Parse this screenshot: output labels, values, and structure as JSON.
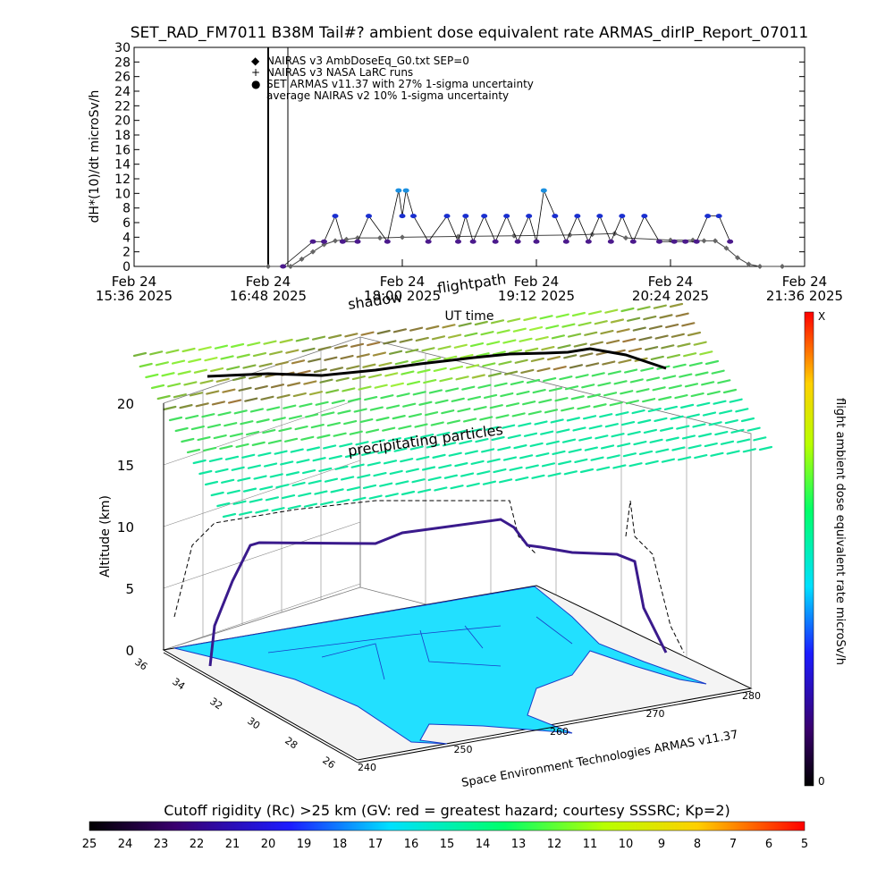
{
  "title": "SET_RAD_FM7011  B38M Tail#? ambient dose equivalent rate ARMAS_dirIP_Report_07011",
  "chart_data": [
    {
      "type": "scatter",
      "ylabel": "dH*(10)/dt microSv/h",
      "xlabel": "UT time",
      "ylim": [
        0,
        30
      ],
      "yticks": [
        "0",
        "2",
        "4",
        "6",
        "8",
        "10",
        "12",
        "14",
        "16",
        "18",
        "20",
        "22",
        "24",
        "26",
        "28",
        "30"
      ],
      "xticks": [
        {
          "date": "Feb 24",
          "time": "15:36 2025"
        },
        {
          "date": "Feb 24",
          "time": "16:48 2025"
        },
        {
          "date": "Feb 24",
          "time": "18:00 2025"
        },
        {
          "date": "Feb 24",
          "time": "19:12 2025"
        },
        {
          "date": "Feb 24",
          "time": "20:24 2025"
        },
        {
          "date": "Feb 24",
          "time": "21:36 2025"
        }
      ],
      "xlim": [
        "15:36",
        "21:36"
      ],
      "legend_position": "top-left",
      "legend": [
        {
          "symbol": "◆",
          "text": "NAIRAS v3 AmbDoseEq_G0.txt SEP=0",
          "color": "#555555"
        },
        {
          "symbol": "+",
          "text": "NAIRAS v3 NASA LaRC runs",
          "color": "#000000"
        },
        {
          "symbol": "●",
          "text": "SET ARMAS v11.37 with 27% 1-sigma uncertainty",
          "color": "#1a2fd0"
        },
        {
          "symbol": "",
          "text": "average NAIRAS v2 10% 1-sigma uncertainty",
          "color": "#000000"
        }
      ],
      "series": [
        {
          "name": "NAIRAS v3 AmbDoseEq_G0.txt SEP=0",
          "x": [
            "16:48",
            "17:00",
            "17:06",
            "17:12",
            "17:18",
            "17:24",
            "17:30",
            "17:36",
            "17:48",
            "18:00",
            "18:30",
            "19:00",
            "19:30",
            "19:42",
            "19:54",
            "20:00",
            "20:24",
            "20:36",
            "20:42",
            "20:48",
            "20:54",
            "21:00",
            "21:06",
            "21:12",
            "21:24"
          ],
          "values": [
            0,
            0,
            1,
            2,
            3,
            3.5,
            3.7,
            3.9,
            3.9,
            4.0,
            4.1,
            4.2,
            4.3,
            4.4,
            4.5,
            3.9,
            3.6,
            3.6,
            3.5,
            3.5,
            2.5,
            1.2,
            0.3,
            0,
            0
          ]
        },
        {
          "name": "SET ARMAS v11.37 with 27% 1-sigma uncertainty",
          "x": [
            "16:56",
            "17:12",
            "17:18",
            "17:24",
            "17:28",
            "17:36",
            "17:42",
            "17:52",
            "17:58",
            "18:00",
            "18:02",
            "18:06",
            "18:14",
            "18:24",
            "18:30",
            "18:34",
            "18:38",
            "18:44",
            "18:50",
            "18:56",
            "19:02",
            "19:08",
            "19:12",
            "19:16",
            "19:22",
            "19:28",
            "19:34",
            "19:40",
            "19:46",
            "19:52",
            "19:58",
            "20:04",
            "20:10",
            "20:18",
            "20:26",
            "20:32",
            "20:38",
            "20:44",
            "20:50",
            "20:56"
          ],
          "values": [
            0,
            3.4,
            3.4,
            6.9,
            3.4,
            3.4,
            6.9,
            3.4,
            10.4,
            6.9,
            10.4,
            6.9,
            3.4,
            6.9,
            3.4,
            6.9,
            3.4,
            6.9,
            3.4,
            6.9,
            3.4,
            6.9,
            3.4,
            10.4,
            6.9,
            3.4,
            6.9,
            3.4,
            6.9,
            3.4,
            6.9,
            3.4,
            6.9,
            3.4,
            3.4,
            3.4,
            3.4,
            6.9,
            6.9,
            3.4
          ]
        }
      ]
    },
    {
      "type": "scatter",
      "zlabel": "Altitude (km)",
      "zticks": [
        "0",
        "5",
        "10",
        "15",
        "20"
      ],
      "lat_ticks": [
        "36",
        "34",
        "32",
        "30",
        "28",
        "26"
      ],
      "lon_ticks": [
        "240",
        "250",
        "260",
        "270",
        "280"
      ],
      "labels": {
        "shadow": "shadow",
        "flightpath": "flightpath",
        "particles": "precipitating particles"
      },
      "credit": "Space Environment Technologies ARMAS v11.37",
      "colorbar": {
        "label": "flight ambient dose equivalent rate microSv/h",
        "top": "X",
        "bottom": "0"
      }
    },
    {
      "type": "heatmap",
      "title": "Cutoff rigidity (Rc) >25 km (GV: red = greatest hazard; courtesy SSSRC; Kp=2)",
      "ticks": [
        "25",
        "24",
        "23",
        "22",
        "21",
        "20",
        "19",
        "18",
        "17",
        "16",
        "15",
        "14",
        "13",
        "12",
        "11",
        "10",
        "9",
        "8",
        "7",
        "6",
        "5"
      ],
      "colors": [
        "#000000",
        "#3a006e",
        "#1c1cff",
        "#00e0ff",
        "#00ff6a",
        "#b8ff00",
        "#ffd000",
        "#ff0000"
      ]
    }
  ]
}
